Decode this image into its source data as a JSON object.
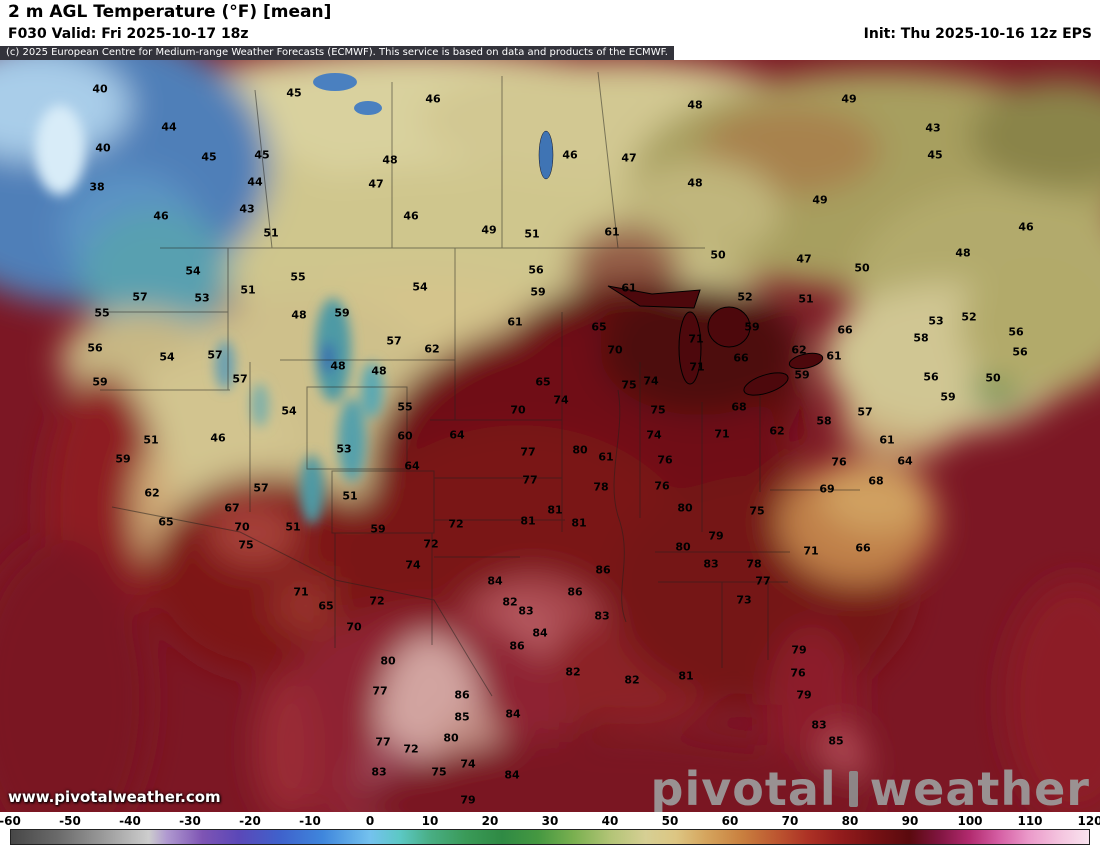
{
  "header": {
    "title": "2 m AGL Temperature (°F) [mean]",
    "valid": "F030 Valid: Fri 2025-10-17 18z",
    "init": "Init: Thu 2025-10-16 12z EPS",
    "copyright": "(c) 2025 European Centre for Medium-range Weather Forecasts (ECMWF). This service is based on data and products of the ECMWF."
  },
  "branding": {
    "url": "www.pivotalweather.com",
    "brand_left": "pivotal",
    "brand_right": "weather"
  },
  "colors": {
    "ocean": "#7c1724",
    "copyright_bar_bg": "#33333b"
  },
  "chart_data": {
    "type": "heatmap",
    "title": "2 m AGL Temperature (°F) [mean]",
    "units": "°F",
    "model_run": "EPS Thu 2025-10-16 12z, forecast hour F030, valid Fri 2025-10-17 18z",
    "legend_position": "bottom",
    "scale_range": [
      -60,
      120
    ],
    "scale_ticks": [
      -60,
      -50,
      -40,
      -30,
      -20,
      -10,
      0,
      10,
      20,
      30,
      40,
      50,
      60,
      70,
      80,
      90,
      100,
      110,
      120
    ],
    "scale_stops": [
      {
        "t": -60,
        "c": "#474747"
      },
      {
        "t": -52,
        "c": "#6b6b6b"
      },
      {
        "t": -44,
        "c": "#9e9e9e"
      },
      {
        "t": -37,
        "c": "#cdcdcd"
      },
      {
        "t": -34,
        "c": "#b09ad0"
      },
      {
        "t": -28,
        "c": "#7e54b4"
      },
      {
        "t": -22,
        "c": "#5b48b8"
      },
      {
        "t": -15,
        "c": "#3f62cc"
      },
      {
        "t": -8,
        "c": "#3f86dc"
      },
      {
        "t": 0,
        "c": "#74c2ee"
      },
      {
        "t": 5,
        "c": "#5cc8c4"
      },
      {
        "t": 10,
        "c": "#49ae84"
      },
      {
        "t": 16,
        "c": "#3a9a58"
      },
      {
        "t": 22,
        "c": "#2f8a44"
      },
      {
        "t": 28,
        "c": "#459841"
      },
      {
        "t": 34,
        "c": "#7ab050"
      },
      {
        "t": 40,
        "c": "#b2c476"
      },
      {
        "t": 46,
        "c": "#d6cf94"
      },
      {
        "t": 51,
        "c": "#ddc683"
      },
      {
        "t": 56,
        "c": "#d5a55e"
      },
      {
        "t": 62,
        "c": "#c9803f"
      },
      {
        "t": 68,
        "c": "#bc5530"
      },
      {
        "t": 73,
        "c": "#ad3225"
      },
      {
        "t": 78,
        "c": "#951d1d"
      },
      {
        "t": 84,
        "c": "#771114"
      },
      {
        "t": 90,
        "c": "#5a0a0e"
      },
      {
        "t": 95,
        "c": "#801540"
      },
      {
        "t": 100,
        "c": "#b12a6e"
      },
      {
        "t": 105,
        "c": "#d55fa4"
      },
      {
        "t": 110,
        "c": "#eb9aca"
      },
      {
        "t": 115,
        "c": "#f4c3de"
      },
      {
        "t": 120,
        "c": "#f9e3ef"
      }
    ],
    "station_temps_vxy": [
      [
        40,
        100,
        29
      ],
      [
        45,
        294,
        33
      ],
      [
        46,
        433,
        39
      ],
      [
        48,
        695,
        45
      ],
      [
        49,
        849,
        39
      ],
      [
        43,
        933,
        68
      ],
      [
        44,
        169,
        67
      ],
      [
        40,
        103,
        88
      ],
      [
        45,
        209,
        97
      ],
      [
        45,
        262,
        95
      ],
      [
        48,
        390,
        100
      ],
      [
        46,
        570,
        95
      ],
      [
        47,
        629,
        98
      ],
      [
        45,
        935,
        95
      ],
      [
        38,
        97,
        127
      ],
      [
        44,
        255,
        122
      ],
      [
        47,
        376,
        124
      ],
      [
        48,
        695,
        123
      ],
      [
        49,
        820,
        140
      ],
      [
        46,
        161,
        156
      ],
      [
        43,
        247,
        149
      ],
      [
        46,
        411,
        156
      ],
      [
        51,
        271,
        173
      ],
      [
        49,
        489,
        170
      ],
      [
        51,
        532,
        174
      ],
      [
        61,
        612,
        172
      ],
      [
        46,
        1026,
        167
      ],
      [
        50,
        718,
        195
      ],
      [
        47,
        804,
        199
      ],
      [
        48,
        963,
        193
      ],
      [
        50,
        862,
        208
      ],
      [
        54,
        193,
        211
      ],
      [
        55,
        298,
        217
      ],
      [
        56,
        536,
        210
      ],
      [
        61,
        629,
        228
      ],
      [
        51,
        248,
        230
      ],
      [
        59,
        538,
        232
      ],
      [
        51,
        806,
        239
      ],
      [
        52,
        745,
        237
      ],
      [
        57,
        140,
        237
      ],
      [
        53,
        202,
        238
      ],
      [
        54,
        420,
        227
      ],
      [
        48,
        299,
        255
      ],
      [
        59,
        342,
        253
      ],
      [
        55,
        102,
        253
      ],
      [
        61,
        515,
        262
      ],
      [
        65,
        599,
        267
      ],
      [
        59,
        752,
        267
      ],
      [
        66,
        845,
        270
      ],
      [
        53,
        936,
        261
      ],
      [
        52,
        969,
        257
      ],
      [
        56,
        1016,
        272
      ],
      [
        58,
        921,
        278
      ],
      [
        56,
        95,
        288
      ],
      [
        54,
        167,
        297
      ],
      [
        57,
        215,
        295
      ],
      [
        57,
        394,
        281
      ],
      [
        62,
        432,
        289
      ],
      [
        70,
        615,
        290
      ],
      [
        71,
        696,
        279
      ],
      [
        66,
        741,
        298
      ],
      [
        62,
        799,
        290
      ],
      [
        61,
        834,
        296
      ],
      [
        56,
        1020,
        292
      ],
      [
        59,
        100,
        322
      ],
      [
        57,
        240,
        319
      ],
      [
        48,
        338,
        306
      ],
      [
        48,
        379,
        311
      ],
      [
        65,
        543,
        322
      ],
      [
        75,
        629,
        325
      ],
      [
        74,
        651,
        321
      ],
      [
        71,
        697,
        307
      ],
      [
        59,
        802,
        315
      ],
      [
        56,
        931,
        317
      ],
      [
        59,
        948,
        337
      ],
      [
        50,
        993,
        318
      ],
      [
        51,
        151,
        380
      ],
      [
        46,
        218,
        378
      ],
      [
        54,
        289,
        351
      ],
      [
        55,
        405,
        347
      ],
      [
        60,
        405,
        376
      ],
      [
        64,
        457,
        375
      ],
      [
        70,
        518,
        350
      ],
      [
        74,
        561,
        340
      ],
      [
        75,
        658,
        350
      ],
      [
        74,
        654,
        375
      ],
      [
        68,
        739,
        347
      ],
      [
        71,
        722,
        374
      ],
      [
        62,
        777,
        371
      ],
      [
        58,
        824,
        361
      ],
      [
        57,
        865,
        352
      ],
      [
        61,
        887,
        380
      ],
      [
        64,
        905,
        401
      ],
      [
        53,
        344,
        389
      ],
      [
        64,
        412,
        406
      ],
      [
        77,
        528,
        392
      ],
      [
        80,
        580,
        390
      ],
      [
        76,
        665,
        400
      ],
      [
        61,
        606,
        397
      ],
      [
        76,
        839,
        402
      ],
      [
        59,
        123,
        399
      ],
      [
        62,
        152,
        433
      ],
      [
        57,
        261,
        428
      ],
      [
        51,
        350,
        436
      ],
      [
        77,
        530,
        420
      ],
      [
        78,
        601,
        427
      ],
      [
        76,
        662,
        426
      ],
      [
        69,
        827,
        429
      ],
      [
        68,
        876,
        421
      ],
      [
        65,
        166,
        462
      ],
      [
        67,
        232,
        448
      ],
      [
        70,
        242,
        467
      ],
      [
        51,
        293,
        467
      ],
      [
        59,
        378,
        469
      ],
      [
        72,
        456,
        464
      ],
      [
        81,
        528,
        461
      ],
      [
        81,
        555,
        450
      ],
      [
        81,
        579,
        463
      ],
      [
        80,
        685,
        448
      ],
      [
        75,
        757,
        451
      ],
      [
        79,
        716,
        476
      ],
      [
        71,
        811,
        491
      ],
      [
        66,
        863,
        488
      ],
      [
        75,
        246,
        485
      ],
      [
        72,
        431,
        484
      ],
      [
        74,
        413,
        505
      ],
      [
        80,
        683,
        487
      ],
      [
        83,
        711,
        504
      ],
      [
        78,
        754,
        504
      ],
      [
        86,
        603,
        510
      ],
      [
        71,
        301,
        532
      ],
      [
        65,
        326,
        546
      ],
      [
        72,
        377,
        541
      ],
      [
        84,
        495,
        521
      ],
      [
        86,
        575,
        532
      ],
      [
        82,
        510,
        542
      ],
      [
        77,
        763,
        521
      ],
      [
        73,
        744,
        540
      ],
      [
        83,
        602,
        556
      ],
      [
        70,
        354,
        567
      ],
      [
        83,
        526,
        551
      ],
      [
        84,
        540,
        573
      ],
      [
        86,
        517,
        586
      ],
      [
        79,
        799,
        590
      ],
      [
        80,
        388,
        601
      ],
      [
        77,
        380,
        631
      ],
      [
        82,
        573,
        612
      ],
      [
        82,
        632,
        620
      ],
      [
        81,
        686,
        616
      ],
      [
        76,
        798,
        613
      ],
      [
        86,
        462,
        635
      ],
      [
        79,
        804,
        635
      ],
      [
        85,
        462,
        657
      ],
      [
        84,
        513,
        654
      ],
      [
        80,
        451,
        678
      ],
      [
        72,
        411,
        689
      ],
      [
        83,
        819,
        665
      ],
      [
        85,
        836,
        681
      ],
      [
        77,
        383,
        682
      ],
      [
        83,
        379,
        712
      ],
      [
        75,
        439,
        712
      ],
      [
        74,
        468,
        704
      ],
      [
        84,
        512,
        715
      ],
      [
        79,
        468,
        740
      ]
    ]
  }
}
